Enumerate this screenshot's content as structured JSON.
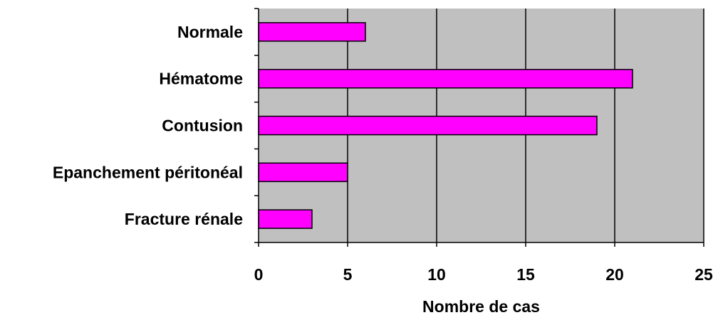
{
  "chart_data": {
    "type": "bar",
    "orientation": "horizontal",
    "title": "",
    "xlabel": "Nombre de cas",
    "ylabel": "",
    "categories": [
      "Normale",
      "Hématome",
      "Contusion",
      "Epanchement péritonéal",
      "Fracture rénale"
    ],
    "values": [
      6,
      21,
      19,
      5,
      3
    ],
    "xlim": [
      0,
      25
    ],
    "xticks": [
      0,
      5,
      10,
      15,
      20,
      25
    ],
    "xtick_labels": [
      "0",
      "5",
      "10",
      "15",
      "20",
      "25"
    ],
    "grid": "vertical",
    "legend": "none"
  },
  "colors": {
    "bar_fill": "#ff00ff",
    "plot_background": "#c0c0c0",
    "gridline": "#000000",
    "outline": "#000000"
  }
}
